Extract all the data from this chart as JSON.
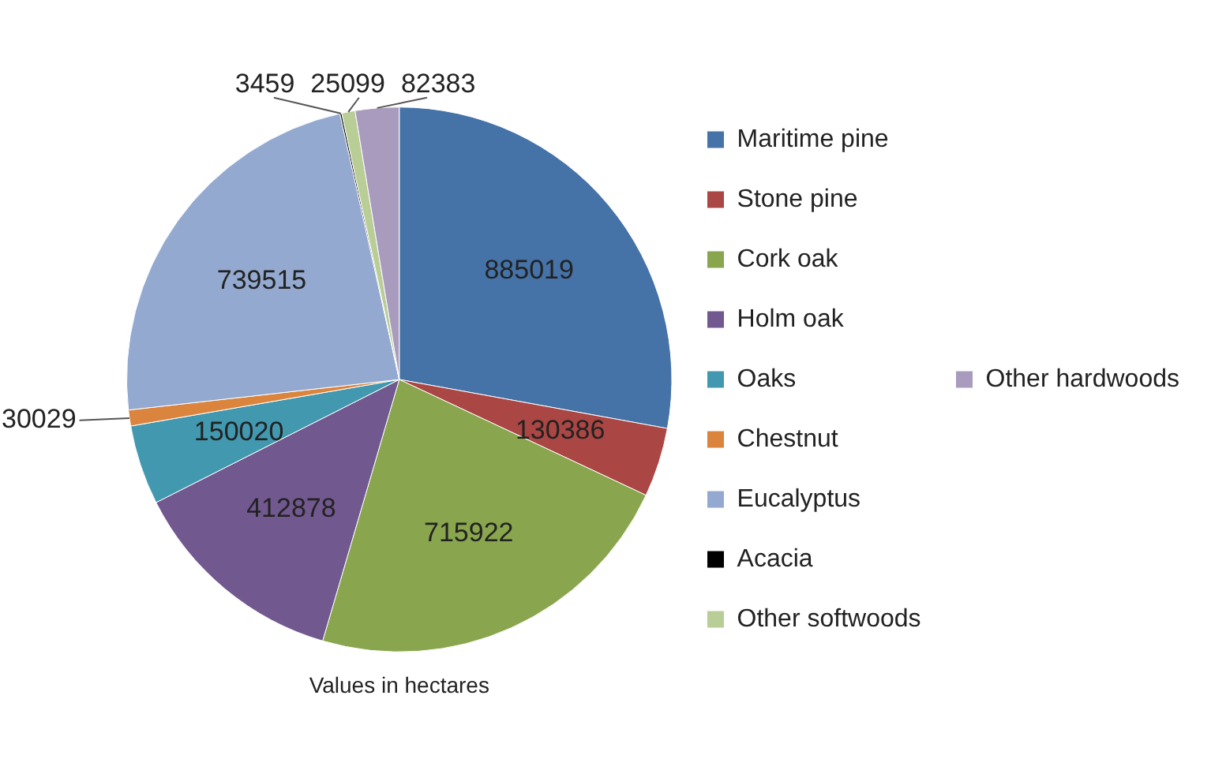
{
  "chart_data": {
    "type": "pie",
    "categories": [
      "Maritime pine",
      "Stone pine",
      "Cork oak",
      "Holm oak",
      "Oaks",
      "Chestnut",
      "Eucalyptus",
      "Acacia",
      "Other softwoods",
      "Other hardwoods"
    ],
    "values": [
      885019,
      130386,
      715922,
      412878,
      150020,
      30029,
      739515,
      3459,
      25099,
      82383
    ],
    "colors": [
      "#4572a7",
      "#aa4643",
      "#89a54e",
      "#71588f",
      "#4198af",
      "#db843d",
      "#93a9cf",
      "#000000",
      "#b9cd96",
      "#a99bbd"
    ],
    "data_labels": true,
    "legend": "right",
    "annotations": [
      "Values in hectares"
    ]
  }
}
